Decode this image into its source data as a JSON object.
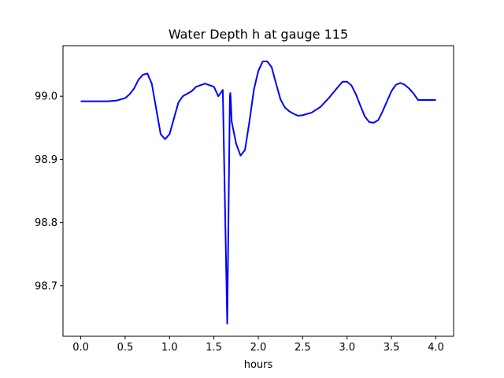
{
  "chart_data": {
    "type": "line",
    "title": "Water Depth h at gauge 115",
    "xlabel": "hours",
    "ylabel": "",
    "xlim": [
      -0.2,
      4.2
    ],
    "ylim": [
      98.62,
      99.08
    ],
    "grid": false,
    "xticks": [
      0.0,
      0.5,
      1.0,
      1.5,
      2.0,
      2.5,
      3.0,
      3.5,
      4.0
    ],
    "xtick_labels": [
      "0.0",
      "0.5",
      "1.0",
      "1.5",
      "2.0",
      "2.5",
      "3.0",
      "3.5",
      "4.0"
    ],
    "yticks": [
      98.7,
      98.8,
      98.9,
      99.0
    ],
    "ytick_labels": [
      "98.7",
      "98.8",
      "98.9",
      "99.0"
    ],
    "series": [
      {
        "color": "#0000ff",
        "x": [
          0.0,
          0.1,
          0.2,
          0.3,
          0.4,
          0.5,
          0.55,
          0.6,
          0.65,
          0.7,
          0.75,
          0.8,
          0.85,
          0.9,
          0.95,
          1.0,
          1.05,
          1.1,
          1.15,
          1.2,
          1.25,
          1.3,
          1.4,
          1.5,
          1.55,
          1.6,
          1.65,
          1.68,
          1.685,
          1.69,
          1.7,
          1.75,
          1.8,
          1.85,
          1.9,
          1.95,
          2.0,
          2.05,
          2.1,
          2.15,
          2.2,
          2.25,
          2.3,
          2.35,
          2.4,
          2.45,
          2.5,
          2.6,
          2.7,
          2.8,
          2.9,
          2.95,
          3.0,
          3.05,
          3.1,
          3.15,
          3.2,
          3.25,
          3.3,
          3.35,
          3.4,
          3.45,
          3.5,
          3.55,
          3.6,
          3.65,
          3.7,
          3.75,
          3.8,
          3.85,
          3.9,
          3.95,
          4.0
        ],
        "y": [
          98.992,
          98.992,
          98.992,
          98.992,
          98.993,
          98.997,
          99.003,
          99.012,
          99.026,
          99.034,
          99.036,
          99.02,
          98.98,
          98.94,
          98.932,
          98.94,
          98.965,
          98.99,
          99.0,
          99.004,
          99.008,
          99.015,
          99.02,
          99.015,
          99.0,
          99.01,
          98.64,
          99.0,
          99.005,
          98.995,
          98.96,
          98.925,
          98.906,
          98.915,
          98.96,
          99.01,
          99.04,
          99.055,
          99.055,
          99.046,
          99.02,
          98.995,
          98.982,
          98.976,
          98.972,
          98.969,
          98.97,
          98.974,
          98.983,
          98.998,
          99.015,
          99.023,
          99.023,
          99.017,
          99.003,
          98.985,
          98.968,
          98.959,
          98.958,
          98.962,
          98.976,
          98.992,
          99.008,
          99.018,
          99.021,
          99.018,
          99.012,
          99.004,
          98.994,
          98.994,
          98.994,
          98.994,
          98.994
        ]
      }
    ]
  }
}
